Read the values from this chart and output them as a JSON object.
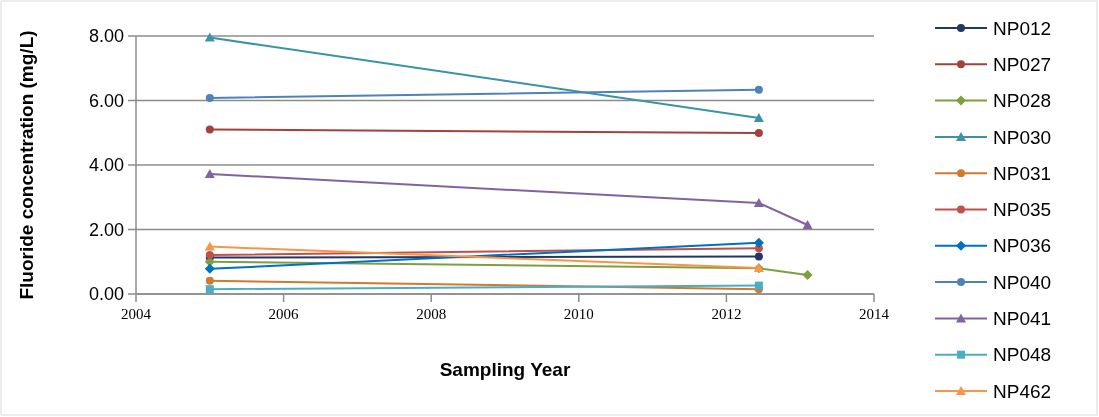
{
  "chart_data": {
    "type": "line",
    "xlabel": "Sampling Year",
    "ylabel": "Fluoride concentration (mg/L)",
    "xlim": [
      2004,
      2014
    ],
    "xticks": [
      2004,
      2006,
      2008,
      2010,
      2012,
      2014
    ],
    "ylim": [
      0,
      8
    ],
    "yticks": [
      {
        "value": 0,
        "label": "0.00"
      },
      {
        "value": 2,
        "label": "2.00"
      },
      {
        "value": 4,
        "label": "4.00"
      },
      {
        "value": 6,
        "label": "6.00"
      },
      {
        "value": 8,
        "label": "8.00"
      }
    ],
    "grid": "y",
    "legend": "right",
    "series": [
      {
        "name": "NP012",
        "color": "#1f3864",
        "marker": "circle",
        "x": [
          2005,
          2012.44
        ],
        "values": [
          1.13,
          1.16
        ]
      },
      {
        "name": "NP027",
        "color": "#a5403c",
        "marker": "circle",
        "x": [
          2005,
          2012.44
        ],
        "values": [
          5.1,
          4.99
        ]
      },
      {
        "name": "NP028",
        "color": "#7f9f3f",
        "marker": "diamond",
        "x": [
          2005,
          2012.44,
          2013.1
        ],
        "values": [
          1.0,
          0.8,
          0.59
        ]
      },
      {
        "name": "NP030",
        "color": "#3a93a8",
        "marker": "triangle",
        "x": [
          2005,
          2012.44
        ],
        "values": [
          7.95,
          5.46
        ]
      },
      {
        "name": "NP031",
        "color": "#d07a2f",
        "marker": "circle",
        "x": [
          2005,
          2012.44
        ],
        "values": [
          0.41,
          0.15
        ]
      },
      {
        "name": "NP035",
        "color": "#c0504d",
        "marker": "circle",
        "x": [
          2005,
          2012.44
        ],
        "values": [
          1.21,
          1.42
        ]
      },
      {
        "name": "NP036",
        "color": "#0070c0",
        "marker": "diamond",
        "x": [
          2005,
          2012.44
        ],
        "values": [
          0.78,
          1.59
        ]
      },
      {
        "name": "NP040",
        "color": "#4f81bd",
        "marker": "circle",
        "x": [
          2005,
          2012.44
        ],
        "values": [
          6.08,
          6.33
        ]
      },
      {
        "name": "NP041",
        "color": "#8064a2",
        "marker": "triangle",
        "x": [
          2005,
          2012.44,
          2013.1
        ],
        "values": [
          3.72,
          2.82,
          2.14
        ]
      },
      {
        "name": "NP048",
        "color": "#4bacc6",
        "marker": "square",
        "x": [
          2005,
          2012.44
        ],
        "values": [
          0.15,
          0.26
        ]
      },
      {
        "name": "NP462",
        "color": "#f79646",
        "marker": "triangle",
        "x": [
          2005,
          2012.44
        ],
        "values": [
          1.47,
          0.81
        ]
      }
    ]
  }
}
